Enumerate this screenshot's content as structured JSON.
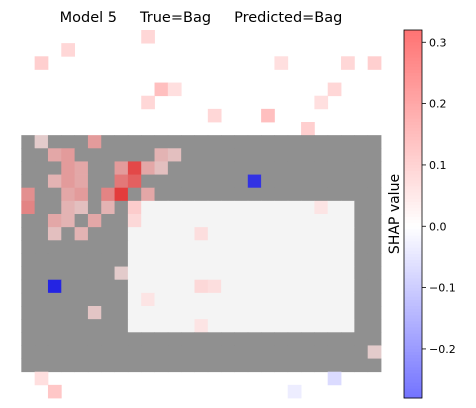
{
  "chart_data": {
    "type": "heatmap",
    "title": "Model 5     True=Bag     Predicted=Bag",
    "grid_size": [
      28,
      28
    ],
    "colorbar": {
      "label": "SHAP value",
      "range": [
        -0.28,
        0.32
      ],
      "ticks": [
        -0.2,
        -0.1,
        0.0,
        0.1,
        0.2,
        0.3
      ],
      "tick_labels": [
        "−0.2",
        "−0.1",
        "0.0",
        "0.1",
        "0.2",
        "0.3"
      ],
      "colormap": "bwr",
      "colors": {
        "negative": "#0000ff",
        "zero": "#ffffff",
        "positive": "#ff0000"
      }
    },
    "underlay": {
      "description_free_grayscale": true,
      "bag_body_rows": [
        8,
        25
      ],
      "bag_body_cols": [
        1,
        27
      ],
      "handle_hole_rows": [
        13,
        22
      ],
      "handle_hole_cols": [
        9,
        25
      ],
      "gray_level": "#909090",
      "light_level": "#f4f4f4"
    },
    "highlights": [
      {
        "row": 11,
        "col": 18,
        "value": -0.26
      },
      {
        "row": 19,
        "col": 3,
        "value": -0.28
      },
      {
        "row": 10,
        "col": 9,
        "value": 0.26
      },
      {
        "row": 11,
        "col": 9,
        "value": 0.22
      },
      {
        "row": 12,
        "col": 8,
        "value": 0.28
      },
      {
        "row": 12,
        "col": 7,
        "value": 0.16
      },
      {
        "row": 11,
        "col": 8,
        "value": 0.18
      },
      {
        "row": 10,
        "col": 8,
        "value": 0.12
      },
      {
        "row": 13,
        "col": 1,
        "value": 0.16
      },
      {
        "row": 12,
        "col": 1,
        "value": 0.14
      },
      {
        "row": 10,
        "col": 4,
        "value": 0.12
      },
      {
        "row": 10,
        "col": 5,
        "value": 0.1
      },
      {
        "row": 11,
        "col": 4,
        "value": 0.12
      },
      {
        "row": 11,
        "col": 5,
        "value": 0.1
      },
      {
        "row": 11,
        "col": 3,
        "value": 0.08
      },
      {
        "row": 12,
        "col": 4,
        "value": 0.1
      },
      {
        "row": 12,
        "col": 5,
        "value": 0.12
      },
      {
        "row": 13,
        "col": 4,
        "value": 0.08
      },
      {
        "row": 13,
        "col": 5,
        "value": 0.06
      },
      {
        "row": 14,
        "col": 3,
        "value": 0.1
      },
      {
        "row": 14,
        "col": 4,
        "value": 0.08
      },
      {
        "row": 14,
        "col": 6,
        "value": 0.1
      },
      {
        "row": 15,
        "col": 5,
        "value": 0.08
      },
      {
        "row": 15,
        "col": 3,
        "value": 0.06
      },
      {
        "row": 9,
        "col": 3,
        "value": 0.1
      },
      {
        "row": 9,
        "col": 4,
        "value": 0.12
      },
      {
        "row": 9,
        "col": 11,
        "value": 0.08
      },
      {
        "row": 9,
        "col": 12,
        "value": 0.06
      },
      {
        "row": 10,
        "col": 10,
        "value": 0.1
      },
      {
        "row": 10,
        "col": 11,
        "value": 0.06
      },
      {
        "row": 12,
        "col": 10,
        "value": 0.1
      },
      {
        "row": 13,
        "col": 9,
        "value": 0.08
      },
      {
        "row": 13,
        "col": 7,
        "value": 0.08
      },
      {
        "row": 14,
        "col": 9,
        "value": 0.06
      },
      {
        "row": 8,
        "col": 6,
        "value": 0.12
      },
      {
        "row": 8,
        "col": 2,
        "value": 0.04
      },
      {
        "row": 1,
        "col": 4,
        "value": 0.05
      },
      {
        "row": 2,
        "col": 2,
        "value": 0.06
      },
      {
        "row": 0,
        "col": 10,
        "value": 0.05
      },
      {
        "row": 4,
        "col": 11,
        "value": 0.08
      },
      {
        "row": 4,
        "col": 12,
        "value": 0.04
      },
      {
        "row": 5,
        "col": 10,
        "value": 0.05
      },
      {
        "row": 2,
        "col": 20,
        "value": 0.04
      },
      {
        "row": 2,
        "col": 25,
        "value": 0.05
      },
      {
        "row": 2,
        "col": 27,
        "value": 0.06
      },
      {
        "row": 4,
        "col": 24,
        "value": 0.05
      },
      {
        "row": 5,
        "col": 23,
        "value": 0.04
      },
      {
        "row": 6,
        "col": 19,
        "value": 0.08
      },
      {
        "row": 7,
        "col": 22,
        "value": 0.06
      },
      {
        "row": 6,
        "col": 15,
        "value": 0.05
      },
      {
        "row": 13,
        "col": 23,
        "value": 0.04
      },
      {
        "row": 15,
        "col": 14,
        "value": 0.05
      },
      {
        "row": 19,
        "col": 14,
        "value": 0.06
      },
      {
        "row": 19,
        "col": 15,
        "value": 0.05
      },
      {
        "row": 18,
        "col": 8,
        "value": 0.04
      },
      {
        "row": 20,
        "col": 10,
        "value": 0.04
      },
      {
        "row": 21,
        "col": 6,
        "value": 0.05
      },
      {
        "row": 22,
        "col": 14,
        "value": 0.04
      },
      {
        "row": 24,
        "col": 27,
        "value": 0.04
      },
      {
        "row": 26,
        "col": 2,
        "value": 0.04
      },
      {
        "row": 27,
        "col": 3,
        "value": 0.07
      },
      {
        "row": 26,
        "col": 24,
        "value": -0.04
      },
      {
        "row": 27,
        "col": 21,
        "value": -0.02
      }
    ]
  }
}
